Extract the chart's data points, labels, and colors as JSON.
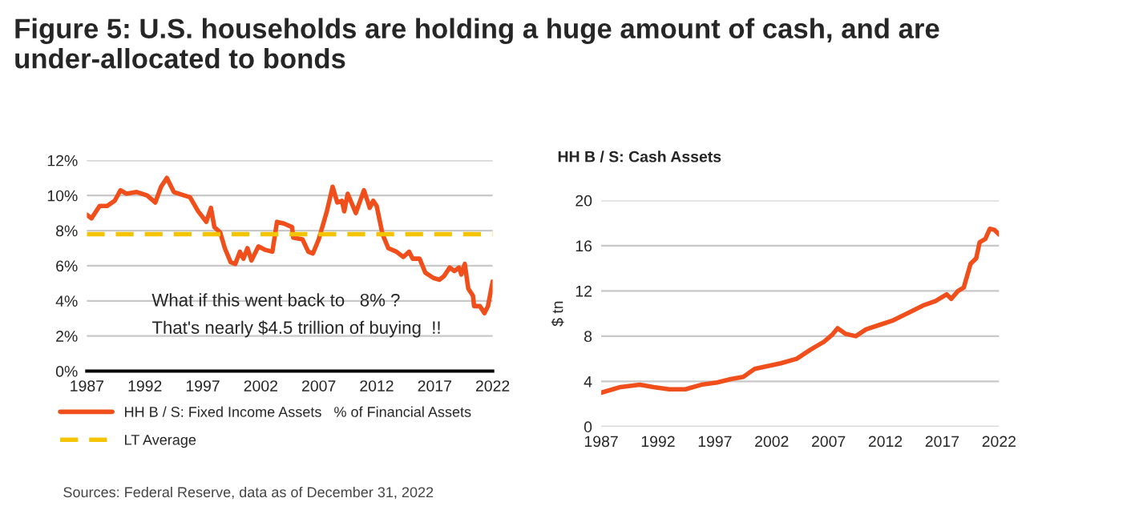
{
  "chart_data": [
    {
      "type": "line",
      "title": "Figure 5: U.S. households are holding a huge amount of cash, and are under-allocated to bonds",
      "annotations": [
        "What if this went back to   8% ?",
        "That's nearly $4.5 trillion of buying  !!",
        "Sources: Federal Reserve, data as of December 31, 2022"
      ],
      "series": [
        {
          "name": "HH B / S: Fixed Income Assets   % of Financial Assets",
          "color": "#f04e1a",
          "x": [
            1987,
            1987.4,
            1988.1,
            1988.75,
            1989.4,
            1989.9,
            1990.4,
            1991.3,
            1992.2,
            1992.9,
            1993.4,
            1993.9,
            1994.5,
            1995.4,
            1995.9,
            1996.6,
            1997.3,
            1997.7,
            1998.0,
            1998.5,
            1998.9,
            1999.4,
            1999.8,
            2000.2,
            2000.5,
            2000.85,
            2001.2,
            2001.8,
            2002.4,
            2003.0,
            2003.4,
            2004.0,
            2004.7,
            2004.8,
            2005.6,
            2006.1,
            2006.5,
            2007.0,
            2007.7,
            2008.2,
            2008.6,
            2009.0,
            2009.2,
            2009.5,
            2010.2,
            2010.9,
            2011.4,
            2011.7,
            2012.0,
            2012.5,
            2013.0,
            2013.7,
            2014.3,
            2014.8,
            2015.1,
            2015.7,
            2016.2,
            2016.9,
            2017.4,
            2017.8,
            2018.3,
            2018.7,
            2019.1,
            2019.3,
            2019.6,
            2019.9,
            2020.3,
            2020.4,
            2020.9,
            2021.3,
            2021.6,
            2022.0
          ],
          "values": [
            8.9,
            8.7,
            9.4,
            9.4,
            9.7,
            10.3,
            10.1,
            10.2,
            10.0,
            9.6,
            10.5,
            11.0,
            10.2,
            10.0,
            9.9,
            9.1,
            8.5,
            9.3,
            8.2,
            7.9,
            7.0,
            6.2,
            6.1,
            6.8,
            6.4,
            7.0,
            6.3,
            7.1,
            6.9,
            6.8,
            8.5,
            8.4,
            8.2,
            7.6,
            7.5,
            6.8,
            6.7,
            7.5,
            9.1,
            10.5,
            9.6,
            9.7,
            9.1,
            10.1,
            9.0,
            10.3,
            9.3,
            9.7,
            9.4,
            7.8,
            7.0,
            6.8,
            6.5,
            6.8,
            6.4,
            6.4,
            5.6,
            5.3,
            5.2,
            5.4,
            5.9,
            5.7,
            5.9,
            5.5,
            6.1,
            4.7,
            4.3,
            3.7,
            3.7,
            3.3,
            3.7,
            5.1
          ]
        }
      ],
      "ref_lines": [
        {
          "axis": "y",
          "value": 7.8,
          "label": "LT Average",
          "color": "#f5c400",
          "line_style": "dashed"
        }
      ],
      "xlim": [
        1987,
        2022
      ],
      "xticks": [
        1987,
        1992,
        1997,
        2002,
        2007,
        2012,
        2017,
        2022
      ],
      "ylim": [
        0,
        12
      ],
      "yticks": [
        {
          "value": 0,
          "label": "0%"
        },
        {
          "value": 2,
          "label": "2%"
        },
        {
          "value": 4,
          "label": "4%"
        },
        {
          "value": 6,
          "label": "6%"
        },
        {
          "value": 8,
          "label": "8%"
        },
        {
          "value": 10,
          "label": "10%"
        },
        {
          "value": 12,
          "label": "12%"
        }
      ],
      "grid": "y",
      "legend": "bottom"
    },
    {
      "type": "line",
      "title": "HH B / S: Cash Assets",
      "ylabel": "$ tn",
      "series": [
        {
          "color": "#f04e1a",
          "x": [
            1987,
            1988.7,
            1990.4,
            1991.6,
            1993.0,
            1994.4,
            1995.8,
            1997.2,
            1998.4,
            1999.5,
            2000.5,
            2001.4,
            2002.8,
            2004.2,
            2005.4,
            2006.6,
            2007.3,
            2007.8,
            2008.5,
            2009.4,
            2010.3,
            2011.5,
            2012.7,
            2014.1,
            2015.3,
            2016.4,
            2017.4,
            2017.8,
            2018.4,
            2018.9,
            2019.5,
            2020.0,
            2020.3,
            2020.8,
            2021.2,
            2021.6,
            2022.0
          ],
          "values": [
            3.0,
            3.5,
            3.7,
            3.5,
            3.3,
            3.3,
            3.7,
            3.9,
            4.2,
            4.4,
            5.1,
            5.3,
            5.6,
            6.0,
            6.8,
            7.5,
            8.1,
            8.7,
            8.2,
            8.0,
            8.6,
            9.0,
            9.4,
            10.1,
            10.7,
            11.1,
            11.7,
            11.3,
            12.0,
            12.3,
            14.4,
            14.9,
            16.3,
            16.6,
            17.5,
            17.4,
            17.0
          ]
        }
      ],
      "xlim": [
        1987,
        2022
      ],
      "xticks": [
        1987,
        1992,
        1997,
        2002,
        2007,
        2012,
        2017,
        2022
      ],
      "ylim": [
        0,
        20
      ],
      "yticks": [
        0,
        4,
        8,
        12,
        16,
        20
      ],
      "grid": "y"
    }
  ]
}
